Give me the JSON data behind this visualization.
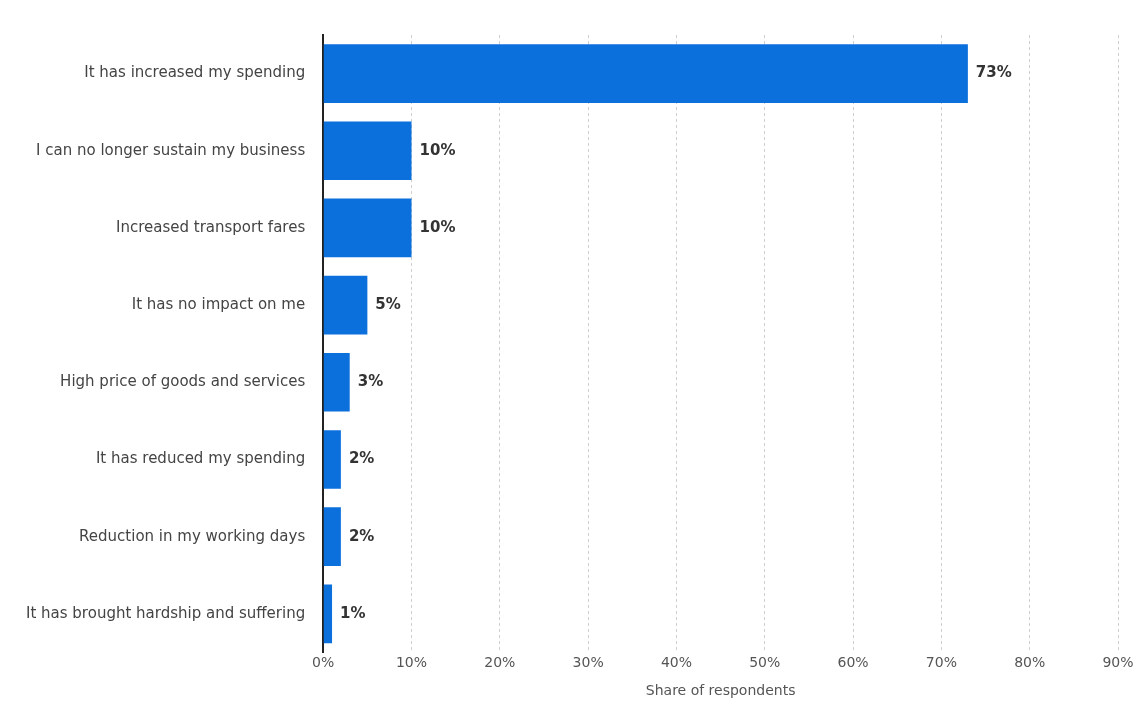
{
  "chart_data": {
    "type": "bar",
    "orientation": "horizontal",
    "xlabel": "Share of respondents",
    "categories": [
      "It has increased my spending",
      "I can no longer sustain my business",
      "Increased transport fares",
      "It has no impact on me",
      "High price of goods and services",
      "It has reduced my spending",
      "Reduction in my working days",
      "It has brought hardship and suffering"
    ],
    "values": [
      73,
      10,
      10,
      5,
      3,
      2,
      2,
      1
    ],
    "value_labels": [
      "73%",
      "10%",
      "10%",
      "5%",
      "3%",
      "2%",
      "2%",
      "1%"
    ],
    "color": "#0b6fdc",
    "xlim": [
      0,
      90
    ],
    "xticks": [
      {
        "value": 0,
        "label": "0%"
      },
      {
        "value": 10,
        "label": "10%"
      },
      {
        "value": 20,
        "label": "20%"
      },
      {
        "value": 30,
        "label": "30%"
      },
      {
        "value": 40,
        "label": "40%"
      },
      {
        "value": 50,
        "label": "50%"
      },
      {
        "value": 60,
        "label": "60%"
      },
      {
        "value": 70,
        "label": "70%"
      },
      {
        "value": 80,
        "label": "80%"
      },
      {
        "value": 90,
        "label": "90%"
      }
    ],
    "grid": "x",
    "legend": false
  }
}
